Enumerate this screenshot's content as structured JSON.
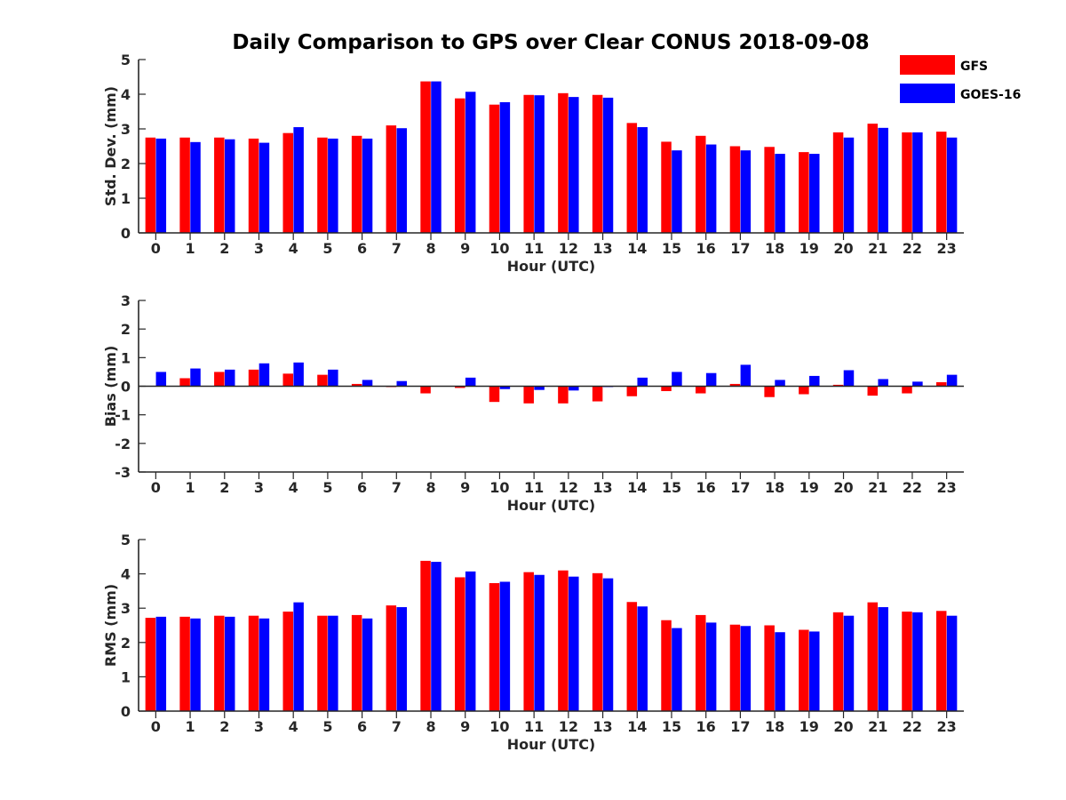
{
  "title": "Daily Comparison to GPS over Clear CONUS 2018-09-08",
  "colors": {
    "GFS": "#ff0000",
    "GOES-16": "#0000ff",
    "axis": "#262626",
    "text": "#262626"
  },
  "legend": {
    "placement": "top-right",
    "entries": [
      {
        "label": "GFS",
        "color": "#ff0000"
      },
      {
        "label": "GOES-16",
        "color": "#0000ff"
      }
    ]
  },
  "chart_data": [
    {
      "type": "bar",
      "id": "stddev",
      "ylabel": "Std. Dev. (mm)",
      "xlabel": "Hour (UTC)",
      "ylim": [
        0,
        5
      ],
      "yticks": [
        0,
        1,
        2,
        3,
        4,
        5
      ],
      "categories": [
        "0",
        "1",
        "2",
        "3",
        "4",
        "5",
        "6",
        "7",
        "8",
        "9",
        "10",
        "11",
        "12",
        "13",
        "14",
        "15",
        "16",
        "17",
        "18",
        "19",
        "20",
        "21",
        "22",
        "23"
      ],
      "series": [
        {
          "name": "GFS",
          "values": [
            2.75,
            2.75,
            2.75,
            2.72,
            2.88,
            2.75,
            2.8,
            3.1,
            4.37,
            3.88,
            3.7,
            3.98,
            4.03,
            3.98,
            3.17,
            2.63,
            2.8,
            2.5,
            2.48,
            2.33,
            2.9,
            3.15,
            2.9,
            2.92
          ]
        },
        {
          "name": "GOES-16",
          "values": [
            2.72,
            2.62,
            2.7,
            2.6,
            3.05,
            2.72,
            2.72,
            3.02,
            4.37,
            4.07,
            3.77,
            3.97,
            3.92,
            3.9,
            3.05,
            2.38,
            2.55,
            2.38,
            2.28,
            2.28,
            2.75,
            3.03,
            2.9,
            2.75
          ]
        }
      ]
    },
    {
      "type": "bar",
      "id": "bias",
      "ylabel": "Bias (mm)",
      "xlabel": "Hour (UTC)",
      "ylim": [
        -3,
        3
      ],
      "yticks": [
        -3,
        -2,
        -1,
        0,
        1,
        2,
        3
      ],
      "categories": [
        "0",
        "1",
        "2",
        "3",
        "4",
        "5",
        "6",
        "7",
        "8",
        "9",
        "10",
        "11",
        "12",
        "13",
        "14",
        "15",
        "16",
        "17",
        "18",
        "19",
        "20",
        "21",
        "22",
        "23"
      ],
      "series": [
        {
          "name": "GFS",
          "values": [
            0.0,
            0.28,
            0.5,
            0.58,
            0.44,
            0.4,
            0.08,
            -0.03,
            -0.25,
            -0.06,
            -0.55,
            -0.6,
            -0.6,
            -0.53,
            -0.35,
            -0.17,
            -0.25,
            0.08,
            -0.38,
            -0.28,
            0.05,
            -0.33,
            -0.25,
            0.14
          ]
        },
        {
          "name": "GOES-16",
          "values": [
            0.5,
            0.62,
            0.58,
            0.8,
            0.83,
            0.58,
            0.22,
            0.18,
            0.0,
            0.3,
            -0.1,
            -0.13,
            -0.15,
            -0.03,
            0.3,
            0.5,
            0.46,
            0.75,
            0.22,
            0.36,
            0.56,
            0.25,
            0.16,
            0.4
          ]
        }
      ]
    },
    {
      "type": "bar",
      "id": "rms",
      "ylabel": "RMS (mm)",
      "xlabel": "Hour (UTC)",
      "ylim": [
        0,
        5
      ],
      "yticks": [
        0,
        1,
        2,
        3,
        4,
        5
      ],
      "categories": [
        "0",
        "1",
        "2",
        "3",
        "4",
        "5",
        "6",
        "7",
        "8",
        "9",
        "10",
        "11",
        "12",
        "13",
        "14",
        "15",
        "16",
        "17",
        "18",
        "19",
        "20",
        "21",
        "22",
        "23"
      ],
      "series": [
        {
          "name": "GFS",
          "values": [
            2.72,
            2.75,
            2.78,
            2.78,
            2.9,
            2.78,
            2.8,
            3.08,
            4.38,
            3.9,
            3.73,
            4.05,
            4.1,
            4.02,
            3.18,
            2.65,
            2.8,
            2.52,
            2.5,
            2.37,
            2.88,
            3.17,
            2.9,
            2.92
          ]
        },
        {
          "name": "GOES-16",
          "values": [
            2.75,
            2.7,
            2.75,
            2.7,
            3.17,
            2.78,
            2.7,
            3.03,
            4.35,
            4.07,
            3.77,
            3.97,
            3.92,
            3.87,
            3.05,
            2.42,
            2.58,
            2.48,
            2.3,
            2.32,
            2.78,
            3.03,
            2.88,
            2.78
          ]
        }
      ]
    }
  ]
}
